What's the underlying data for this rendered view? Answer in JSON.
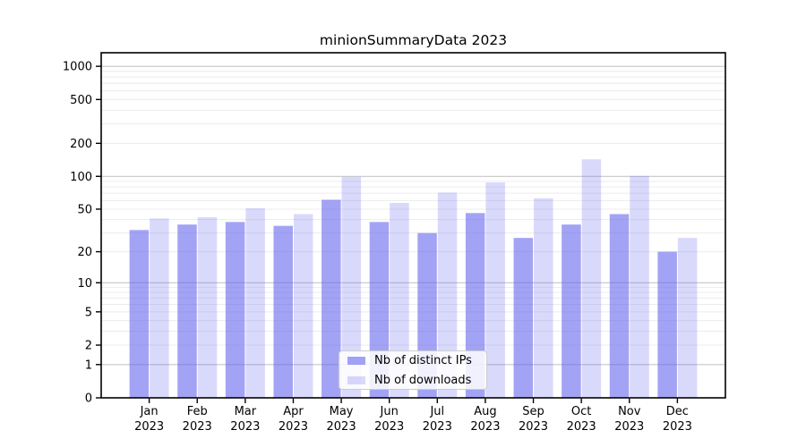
{
  "title": "minionSummaryData 2023",
  "chart_data": {
    "type": "bar",
    "title": "minionSummaryData 2023",
    "yscale": "symlog",
    "yticks": [
      0,
      1,
      2,
      5,
      10,
      20,
      50,
      100,
      200,
      500,
      1000
    ],
    "ylim": [
      0,
      1350
    ],
    "grid": true,
    "legend_position": "lower center",
    "months": [
      "Jan",
      "Feb",
      "Mar",
      "Apr",
      "May",
      "Jun",
      "Jul",
      "Aug",
      "Sep",
      "Oct",
      "Nov",
      "Dec"
    ],
    "year": "2023",
    "categories": [
      "Jan 2023",
      "Feb 2023",
      "Mar 2023",
      "Apr 2023",
      "May 2023",
      "Jun 2023",
      "Jul 2023",
      "Aug 2023",
      "Sep 2023",
      "Oct 2023",
      "Nov 2023",
      "Dec 2023"
    ],
    "series": [
      {
        "key": "ips",
        "name": "Nb of distinct IPs",
        "color": "rgba(102,102,238,0.6)",
        "values": [
          32,
          36,
          38,
          35,
          61,
          38,
          30,
          46,
          27,
          36,
          45,
          20
        ]
      },
      {
        "key": "downloads",
        "name": "Nb of downloads",
        "color": "rgba(102,102,238,0.25)",
        "values": [
          41,
          42,
          51,
          45,
          99,
          57,
          71,
          88,
          63,
          143,
          101,
          27
        ]
      }
    ],
    "colors": {
      "bar_base": "#6666ee",
      "major_grid": "#c6c6c6",
      "minor_grid": "#ececec",
      "axis": "#000000",
      "text": "#000000",
      "legend_border": "#cccccc"
    }
  }
}
